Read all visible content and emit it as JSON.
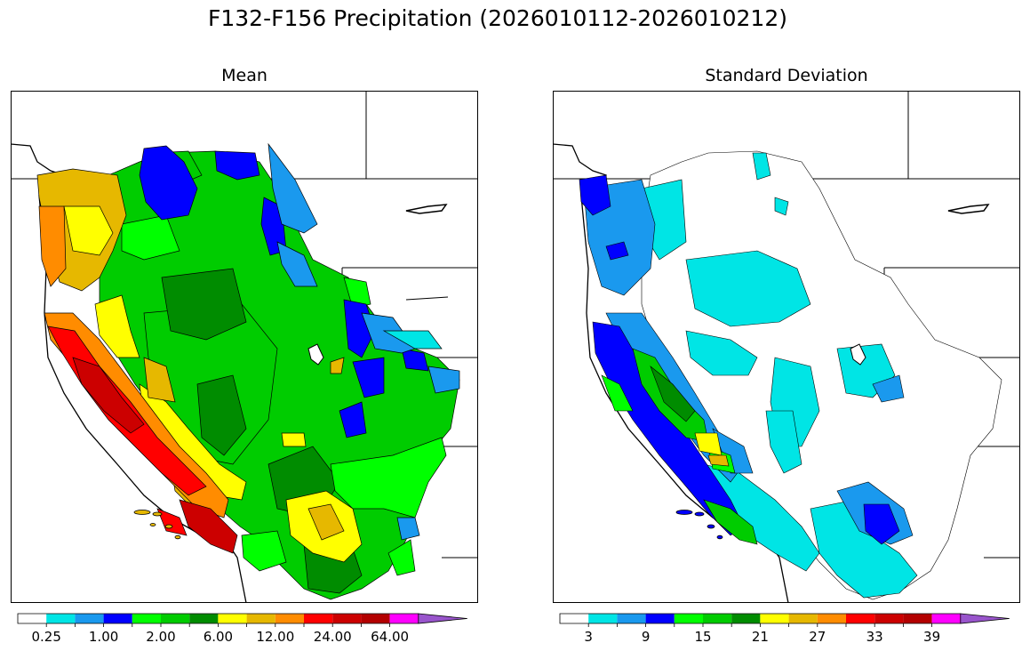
{
  "figure": {
    "title": "F132-F156 Precipitation (2026010112-2026010212)"
  },
  "colors": {
    "mean_scale": [
      "#ffffff",
      "#00e5e5",
      "#1a99ee",
      "#0000ff",
      "#00ff00",
      "#00cc00",
      "#008c00",
      "#ffff00",
      "#e6b800",
      "#ff8c00",
      "#ff0000",
      "#cc0000",
      "#b30000",
      "#ff00ff",
      "#9955cc"
    ],
    "std_scale": [
      "#ffffff",
      "#00e5e5",
      "#1a99ee",
      "#0000ff",
      "#00ff00",
      "#00cc00",
      "#008c00",
      "#ffff00",
      "#e6b800",
      "#ff8c00",
      "#ff0000",
      "#cc0000",
      "#b30000",
      "#ff00ff",
      "#9955cc"
    ]
  },
  "chart_data": [
    {
      "type": "heatmap",
      "title": "Mean",
      "colorbar": {
        "tick_labels": [
          "0.25",
          "1.00",
          "2.00",
          "6.00",
          "12.00",
          "24.00",
          "64.00"
        ],
        "bins": 15,
        "extend": "max"
      },
      "grid": false
    },
    {
      "type": "heatmap",
      "title": "Standard Deviation",
      "colorbar": {
        "tick_labels": [
          "3",
          "9",
          "15",
          "21",
          "27",
          "33",
          "39"
        ],
        "bins": 15,
        "extend": "max"
      },
      "grid": false
    }
  ]
}
